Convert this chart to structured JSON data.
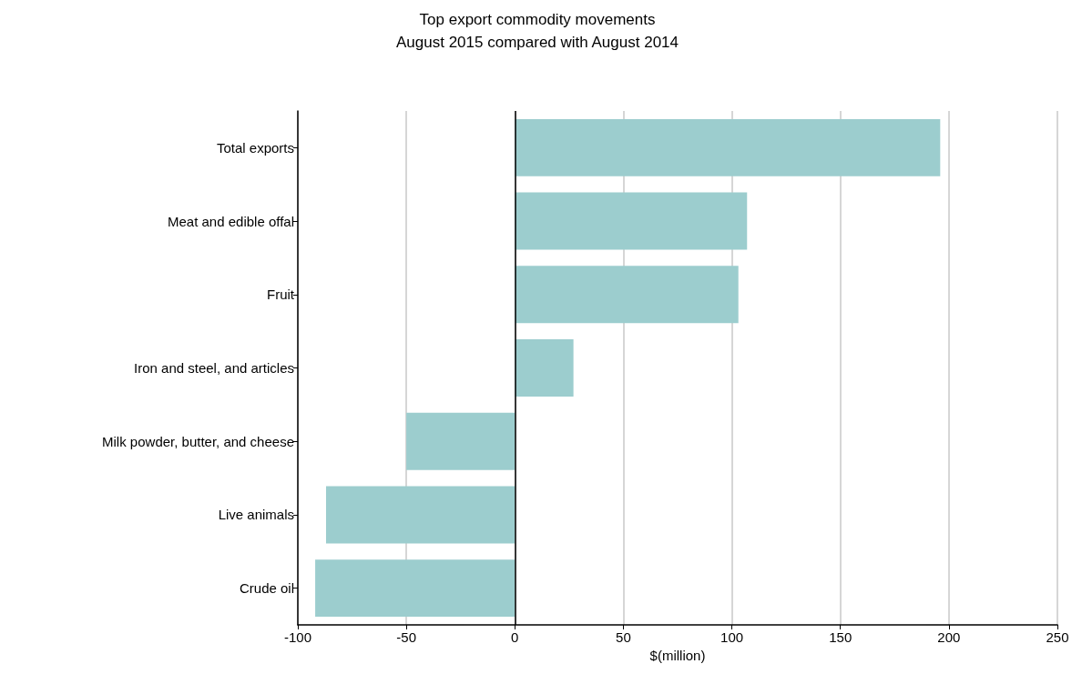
{
  "chart_data": {
    "type": "bar",
    "orientation": "horizontal",
    "title": "Top export commodity movements",
    "subtitle": "August 2015 compared with August 2014",
    "xlabel": "$(million)",
    "categories": [
      "Total exports",
      "Meat and edible offal",
      "Fruit",
      "Iron and steel, and articles",
      "Milk powder, butter, and cheese",
      "Live animals",
      "Crude oil"
    ],
    "values": [
      196,
      107,
      103,
      27,
      -50,
      -87,
      -92
    ],
    "color": "#9ccdce",
    "xlim": [
      -100,
      250
    ],
    "xticks": [
      -100,
      -50,
      0,
      50,
      100,
      150,
      200,
      250
    ],
    "grid": "x",
    "ref_lines": [
      {
        "axis": "x",
        "value": 0,
        "color": "#000000"
      }
    ]
  }
}
